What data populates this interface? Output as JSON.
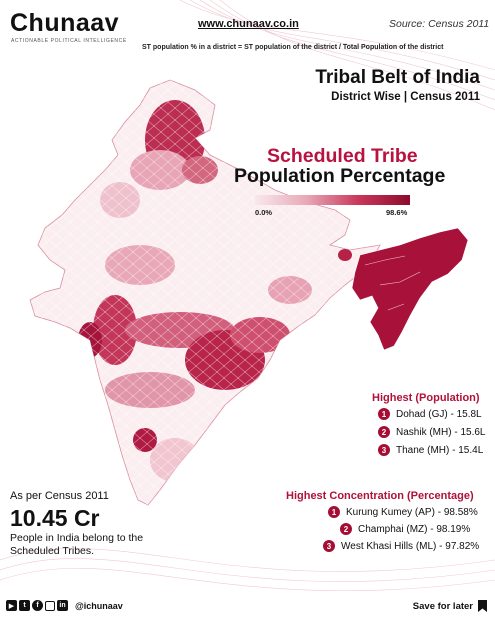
{
  "brand": {
    "name": "Chunaav",
    "tagline": "ACTIONABLE POLITICAL INTELLIGENCE",
    "website": "www.chunaav.co.in",
    "source": "Source: Census 2011"
  },
  "formula": "ST population % in a district = ST population of the district / Total Population of the district",
  "title": {
    "line1": "Tribal Belt of India",
    "line2": "District Wise | Census 2011"
  },
  "map_title": {
    "line1": "Scheduled Tribe",
    "line2": "Population Percentage"
  },
  "legend": {
    "min_label": "0.0%",
    "max_label": "98.6%",
    "min": 0.0,
    "max": 98.6,
    "colors": [
      "#f8e9ec",
      "#e8a8b7",
      "#c8385a",
      "#8e0b2e"
    ]
  },
  "highest_population": {
    "heading": "Highest (Population)",
    "items": [
      {
        "rank": "1",
        "text": "Dohad (GJ) - 15.8L"
      },
      {
        "rank": "2",
        "text": "Nashik (MH) - 15.6L"
      },
      {
        "rank": "3",
        "text": "Thane (MH) - 15.4L"
      }
    ]
  },
  "highest_concentration": {
    "heading": "Highest Concentration (Percentage)",
    "items": [
      {
        "rank": "1",
        "text": "Kurung Kumey (AP) - 98.58%"
      },
      {
        "rank": "2",
        "text": "Champhai (MZ) - 98.19%"
      },
      {
        "rank": "3",
        "text": "West Khasi Hills (ML) - 97.82%"
      }
    ]
  },
  "summary": {
    "census_line": "As per Census 2011",
    "big_number": "10.45 Cr",
    "description": "People in India belong to the Scheduled Tribes."
  },
  "footer": {
    "handle": "@ichunaav",
    "save_label": "Save for later",
    "social_icons": [
      "youtube-icon",
      "twitter-icon",
      "facebook-icon",
      "instagram-icon",
      "linkedin-icon"
    ]
  },
  "colors": {
    "accent": "#b8123f",
    "dark_red": "#8e0b2e",
    "light_pink": "#f8e9ec"
  }
}
